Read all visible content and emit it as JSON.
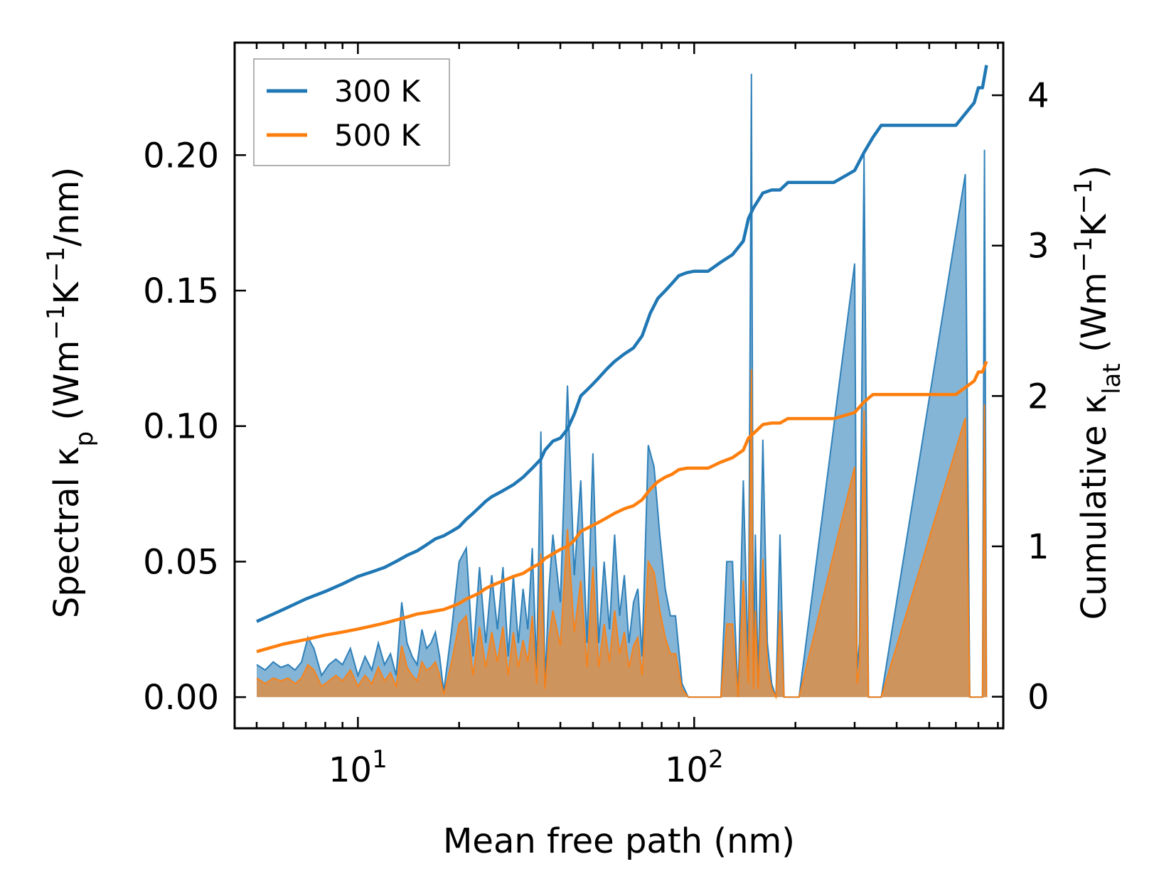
{
  "chart_data": {
    "type": "line",
    "xscale": "log",
    "xlabel": "Mean free path (nm)",
    "ylabel_left": {
      "main": "Spectral κ",
      "sub": "p",
      "units_pre": " (Wm",
      "sup1": "−1",
      "units_mid": "K",
      "sup2": "−1",
      "units_post": "/nm)"
    },
    "ylabel_right": {
      "main": "Cumulative κ",
      "sub": "lat",
      "units_pre": " (Wm",
      "sup1": "−1",
      "units_mid": "K",
      "sup2": "−1",
      "units_post": ")"
    },
    "xlim": [
      4.3,
      830
    ],
    "ylim_left": [
      -0.0115,
      0.2415
    ],
    "ylim_right": [
      -0.21,
      4.35
    ],
    "x_ticks": [
      {
        "value": 10,
        "base": "10",
        "exp": "1"
      },
      {
        "value": 100,
        "base": "10",
        "exp": "2"
      }
    ],
    "y_ticks_left": [
      {
        "value": 0.0,
        "label": "0.00"
      },
      {
        "value": 0.05,
        "label": "0.05"
      },
      {
        "value": 0.1,
        "label": "0.10"
      },
      {
        "value": 0.15,
        "label": "0.15"
      },
      {
        "value": 0.2,
        "label": "0.20"
      }
    ],
    "y_ticks_right": [
      {
        "value": 0,
        "label": "0"
      },
      {
        "value": 1,
        "label": "1"
      },
      {
        "value": 2,
        "label": "2"
      },
      {
        "value": 3,
        "label": "3"
      },
      {
        "value": 4,
        "label": "4"
      }
    ],
    "legend": {
      "position": "top-left",
      "entries": [
        {
          "label": "300 K",
          "color": "#1f77b4"
        },
        {
          "label": "500 K",
          "color": "#ff7f0e"
        }
      ]
    },
    "series": [
      {
        "name": "300 K",
        "role": "cumulative",
        "axis": "right",
        "color": "#1f77b4",
        "x": [
          5.0,
          6.0,
          7.0,
          8.0,
          9.0,
          10.0,
          11.0,
          12.0,
          13.0,
          14.0,
          15.0,
          16.0,
          17.0,
          18.0,
          19.0,
          20.0,
          21.0,
          22.0,
          23.0,
          24.0,
          25.0,
          27.0,
          29.0,
          31.0,
          33.0,
          35.0,
          36.0,
          38.0,
          40.0,
          42.0,
          44.0,
          46.0,
          48.0,
          50.0,
          52.0,
          55.0,
          58.0,
          62.0,
          66.0,
          70.0,
          74.0,
          78.0,
          82.0,
          86.0,
          90.0,
          95.0,
          100.0,
          110.0,
          120.0,
          130.0,
          140.0,
          145.0,
          150.0,
          160.0,
          170.0,
          180.0,
          190.0,
          200.0,
          230.0,
          260.0,
          300.0,
          320.0,
          340.0,
          360.0,
          400.0,
          500.0,
          600.0,
          680.0,
          700.0,
          720.0,
          740.0
        ],
        "values": [
          0.5,
          0.58,
          0.65,
          0.7,
          0.75,
          0.8,
          0.83,
          0.86,
          0.9,
          0.94,
          0.97,
          1.01,
          1.05,
          1.07,
          1.1,
          1.13,
          1.18,
          1.22,
          1.26,
          1.3,
          1.33,
          1.37,
          1.41,
          1.46,
          1.52,
          1.58,
          1.64,
          1.7,
          1.72,
          1.78,
          1.88,
          2.0,
          2.04,
          2.08,
          2.12,
          2.18,
          2.23,
          2.28,
          2.32,
          2.4,
          2.55,
          2.65,
          2.7,
          2.75,
          2.8,
          2.82,
          2.83,
          2.83,
          2.89,
          2.94,
          3.03,
          3.18,
          3.25,
          3.35,
          3.37,
          3.37,
          3.42,
          3.42,
          3.42,
          3.42,
          3.5,
          3.62,
          3.72,
          3.8,
          3.8,
          3.8,
          3.8,
          3.95,
          4.05,
          4.05,
          4.2
        ]
      },
      {
        "name": "500 K",
        "role": "cumulative",
        "axis": "right",
        "color": "#ff7f0e",
        "x": [
          5.0,
          6.0,
          7.0,
          8.0,
          9.0,
          10.0,
          11.0,
          12.0,
          13.0,
          14.0,
          15.0,
          16.0,
          17.0,
          18.0,
          19.0,
          20.0,
          21.0,
          22.0,
          23.0,
          24.0,
          25.0,
          27.0,
          29.0,
          31.0,
          33.0,
          35.0,
          36.0,
          38.0,
          40.0,
          42.0,
          44.0,
          46.0,
          48.0,
          50.0,
          52.0,
          55.0,
          58.0,
          62.0,
          66.0,
          70.0,
          74.0,
          78.0,
          82.0,
          86.0,
          90.0,
          95.0,
          100.0,
          110.0,
          120.0,
          130.0,
          140.0,
          145.0,
          150.0,
          160.0,
          170.0,
          180.0,
          190.0,
          200.0,
          230.0,
          260.0,
          300.0,
          320.0,
          340.0,
          360.0,
          400.0,
          500.0,
          600.0,
          680.0,
          700.0,
          720.0,
          740.0
        ],
        "values": [
          0.3,
          0.35,
          0.38,
          0.41,
          0.43,
          0.45,
          0.47,
          0.49,
          0.51,
          0.53,
          0.55,
          0.56,
          0.57,
          0.58,
          0.6,
          0.62,
          0.65,
          0.67,
          0.69,
          0.72,
          0.74,
          0.77,
          0.8,
          0.82,
          0.86,
          0.89,
          0.92,
          0.95,
          0.98,
          1.0,
          1.04,
          1.1,
          1.12,
          1.14,
          1.16,
          1.19,
          1.22,
          1.25,
          1.27,
          1.31,
          1.38,
          1.43,
          1.46,
          1.48,
          1.51,
          1.52,
          1.52,
          1.52,
          1.56,
          1.59,
          1.64,
          1.72,
          1.75,
          1.81,
          1.82,
          1.82,
          1.85,
          1.85,
          1.85,
          1.85,
          1.89,
          1.96,
          2.01,
          2.01,
          2.01,
          2.01,
          2.01,
          2.1,
          2.16,
          2.16,
          2.23
        ]
      },
      {
        "name": "300 K",
        "role": "spectral",
        "axis": "left",
        "color": "#1f77b4",
        "x": [
          5.0,
          5.3,
          5.6,
          5.9,
          6.2,
          6.5,
          6.8,
          7.1,
          7.4,
          7.8,
          8.2,
          8.6,
          9.0,
          9.5,
          10.0,
          10.5,
          11.0,
          11.5,
          12.0,
          12.5,
          13.0,
          13.5,
          14.0,
          14.5,
          15.0,
          15.5,
          16.0,
          16.5,
          17.0,
          17.5,
          18.0,
          19.0,
          20.0,
          21.0,
          22.0,
          23.0,
          24.0,
          25.0,
          26.0,
          27.0,
          28.0,
          29.0,
          30.0,
          31.0,
          32.0,
          33.0,
          34.0,
          35.0,
          36.0,
          37.0,
          38.0,
          40.0,
          42.0,
          44.0,
          46.0,
          48.0,
          50.0,
          52.0,
          54.0,
          56.0,
          58.0,
          60.0,
          62.0,
          64.0,
          66.0,
          68.0,
          70.0,
          73.0,
          76.0,
          79.0,
          82.0,
          85.0,
          88.0,
          92.0,
          96.0,
          100.0,
          120.0,
          125.0,
          130.0,
          135.0,
          140.0,
          145.0,
          148.0,
          150.0,
          152.0,
          155.0,
          160.0,
          165.0,
          170.0,
          175.0,
          180.0,
          185.0,
          190.0,
          195.0,
          200.0,
          205.0,
          300.0,
          305.0,
          310.0,
          320.0,
          330.0,
          335.0,
          340.0,
          350.0,
          360.0,
          640.0,
          660.0,
          670.0,
          680.0,
          690.0,
          700.0,
          710.0,
          720.0,
          730.0,
          740.0
        ],
        "values": [
          0.012,
          0.01,
          0.013,
          0.011,
          0.012,
          0.01,
          0.013,
          0.022,
          0.018,
          0.008,
          0.012,
          0.014,
          0.012,
          0.018,
          0.008,
          0.015,
          0.01,
          0.02,
          0.012,
          0.016,
          0.008,
          0.035,
          0.02,
          0.015,
          0.012,
          0.025,
          0.018,
          0.02,
          0.024,
          0.015,
          0.002,
          0.025,
          0.05,
          0.055,
          0.015,
          0.048,
          0.02,
          0.045,
          0.025,
          0.048,
          0.015,
          0.045,
          0.02,
          0.04,
          0.025,
          0.055,
          0.01,
          0.098,
          0.005,
          0.04,
          0.06,
          0.035,
          0.115,
          0.045,
          0.08,
          0.02,
          0.09,
          0.02,
          0.05,
          0.025,
          0.06,
          0.03,
          0.045,
          0.02,
          0.035,
          0.04,
          0.015,
          0.093,
          0.085,
          0.06,
          0.04,
          0.03,
          0.03,
          0.005,
          0.0,
          0.0,
          0.0,
          0.05,
          0.05,
          0.0,
          0.08,
          0.01,
          0.23,
          0.005,
          0.06,
          0.005,
          0.095,
          0.02,
          0.005,
          0.0,
          0.06,
          0.0,
          0.0,
          0.0,
          0.0,
          0.0,
          0.16,
          0.01,
          0.02,
          0.2,
          0.0,
          0.0,
          0.0,
          0.0,
          0.0,
          0.193,
          0.0,
          0.0,
          0.0,
          0.0,
          0.0,
          0.0,
          0.0,
          0.202,
          0.0
        ]
      },
      {
        "name": "500 K",
        "role": "spectral",
        "axis": "left",
        "color": "#ff7f0e",
        "x": [
          5.0,
          5.3,
          5.6,
          5.9,
          6.2,
          6.5,
          6.8,
          7.1,
          7.4,
          7.8,
          8.2,
          8.6,
          9.0,
          9.5,
          10.0,
          10.5,
          11.0,
          11.5,
          12.0,
          12.5,
          13.0,
          13.5,
          14.0,
          14.5,
          15.0,
          15.5,
          16.0,
          16.5,
          17.0,
          17.5,
          18.0,
          19.0,
          20.0,
          21.0,
          22.0,
          23.0,
          24.0,
          25.0,
          26.0,
          27.0,
          28.0,
          29.0,
          30.0,
          31.0,
          32.0,
          33.0,
          34.0,
          35.0,
          36.0,
          37.0,
          38.0,
          40.0,
          42.0,
          44.0,
          46.0,
          48.0,
          50.0,
          52.0,
          54.0,
          56.0,
          58.0,
          60.0,
          62.0,
          64.0,
          66.0,
          68.0,
          70.0,
          73.0,
          76.0,
          79.0,
          82.0,
          85.0,
          88.0,
          92.0,
          96.0,
          100.0,
          120.0,
          125.0,
          130.0,
          135.0,
          140.0,
          145.0,
          148.0,
          150.0,
          152.0,
          155.0,
          160.0,
          165.0,
          170.0,
          175.0,
          180.0,
          185.0,
          190.0,
          195.0,
          200.0,
          205.0,
          300.0,
          305.0,
          310.0,
          320.0,
          330.0,
          335.0,
          340.0,
          350.0,
          360.0,
          640.0,
          660.0,
          670.0,
          680.0,
          690.0,
          700.0,
          710.0,
          720.0,
          730.0,
          740.0
        ],
        "values": [
          0.007,
          0.005,
          0.007,
          0.006,
          0.007,
          0.005,
          0.007,
          0.012,
          0.01,
          0.004,
          0.006,
          0.008,
          0.006,
          0.01,
          0.004,
          0.008,
          0.005,
          0.011,
          0.006,
          0.009,
          0.004,
          0.019,
          0.011,
          0.008,
          0.006,
          0.013,
          0.01,
          0.011,
          0.013,
          0.008,
          0.001,
          0.013,
          0.027,
          0.03,
          0.008,
          0.026,
          0.011,
          0.024,
          0.013,
          0.026,
          0.008,
          0.024,
          0.011,
          0.021,
          0.013,
          0.03,
          0.005,
          0.053,
          0.003,
          0.022,
          0.032,
          0.019,
          0.062,
          0.024,
          0.043,
          0.011,
          0.048,
          0.011,
          0.027,
          0.013,
          0.032,
          0.016,
          0.024,
          0.011,
          0.019,
          0.022,
          0.008,
          0.05,
          0.046,
          0.032,
          0.022,
          0.016,
          0.016,
          0.003,
          0.0,
          0.0,
          0.0,
          0.027,
          0.027,
          0.0,
          0.043,
          0.005,
          0.121,
          0.003,
          0.032,
          0.003,
          0.051,
          0.011,
          0.003,
          0.0,
          0.032,
          0.0,
          0.0,
          0.0,
          0.0,
          0.0,
          0.085,
          0.005,
          0.011,
          0.106,
          0.0,
          0.0,
          0.0,
          0.0,
          0.0,
          0.103,
          0.0,
          0.0,
          0.0,
          0.0,
          0.0,
          0.0,
          0.0,
          0.108,
          0.0
        ]
      }
    ]
  }
}
